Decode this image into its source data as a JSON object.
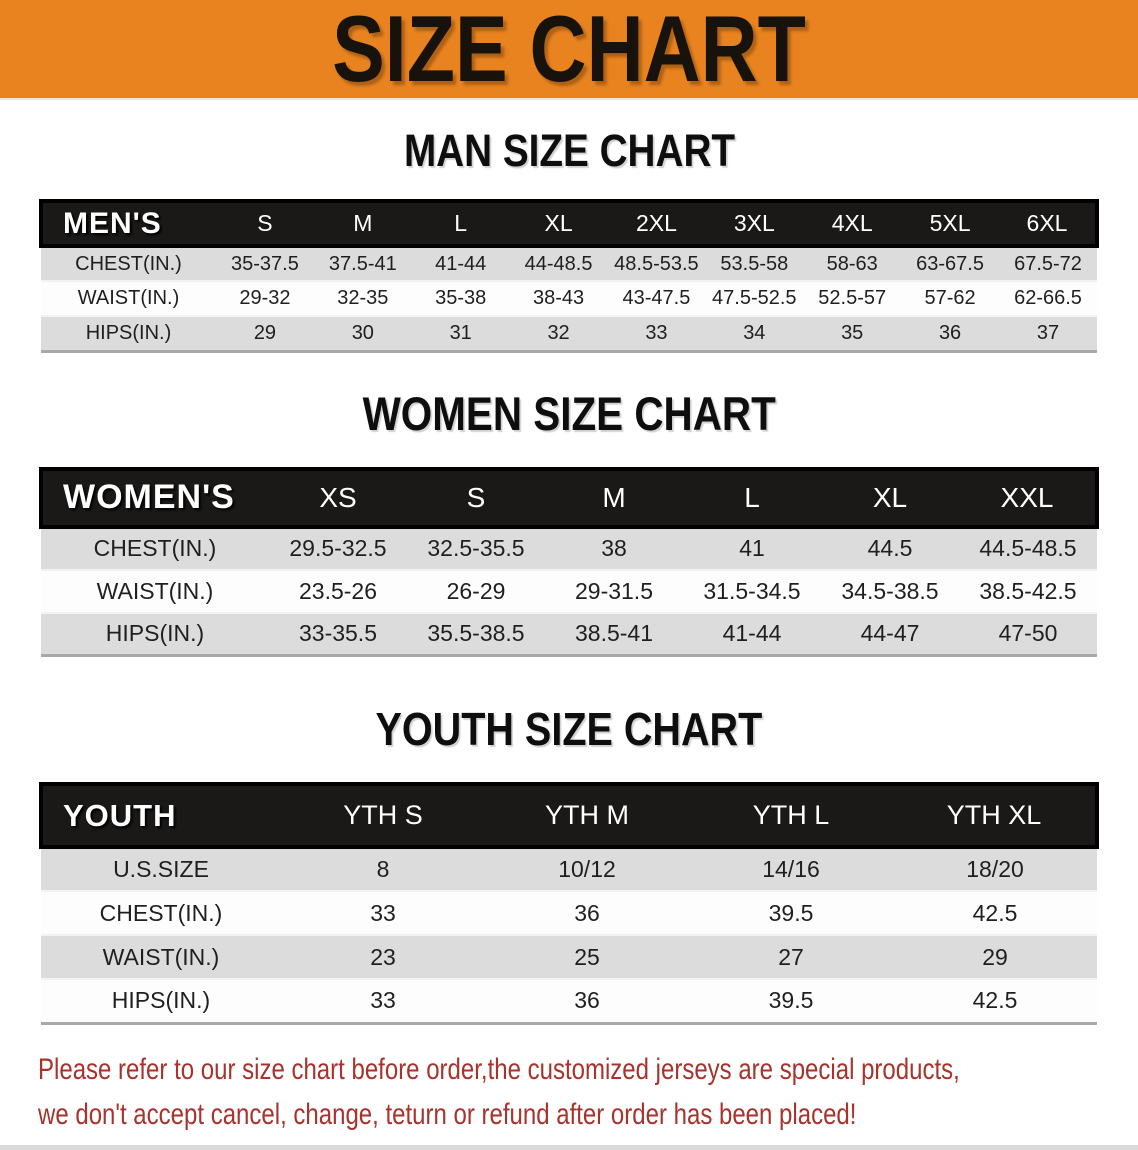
{
  "banner": {
    "title": "SIZE CHART",
    "bg_color": "#e8831f",
    "text_color": "#18120c"
  },
  "sections": [
    {
      "heading": "MAN SIZE CHART",
      "table": {
        "header_label": "MEN'S",
        "columns": [
          "S",
          "M",
          "L",
          "XL",
          "2XL",
          "3XL",
          "4XL",
          "5XL",
          "6XL"
        ],
        "rows": [
          {
            "label": "CHEST(IN.)",
            "values": [
              "35-37.5",
              "37.5-41",
              "41-44",
              "44-48.5",
              "48.5-53.5",
              "53.5-58",
              "58-63",
              "63-67.5",
              "67.5-72"
            ]
          },
          {
            "label": "WAIST(IN.)",
            "values": [
              "29-32",
              "32-35",
              "35-38",
              "38-43",
              "43-47.5",
              "47.5-52.5",
              "52.5-57",
              "57-62",
              "62-66.5"
            ]
          },
          {
            "label": "HIPS(IN.)",
            "values": [
              "29",
              "30",
              "31",
              "32",
              "33",
              "34",
              "35",
              "36",
              "37"
            ]
          }
        ]
      }
    },
    {
      "heading": "WOMEN SIZE CHART",
      "table": {
        "header_label": "WOMEN'S",
        "columns": [
          "XS",
          "S",
          "M",
          "L",
          "XL",
          "XXL"
        ],
        "rows": [
          {
            "label": "CHEST(IN.)",
            "values": [
              "29.5-32.5",
              "32.5-35.5",
              "38",
              "41",
              "44.5",
              "44.5-48.5"
            ]
          },
          {
            "label": "WAIST(IN.)",
            "values": [
              "23.5-26",
              "26-29",
              "29-31.5",
              "31.5-34.5",
              "34.5-38.5",
              "38.5-42.5"
            ]
          },
          {
            "label": "HIPS(IN.)",
            "values": [
              "33-35.5",
              "35.5-38.5",
              "38.5-41",
              "41-44",
              "44-47",
              "47-50"
            ]
          }
        ]
      }
    },
    {
      "heading": "YOUTH SIZE CHART",
      "table": {
        "header_label": "YOUTH",
        "columns": [
          "YTH S",
          "YTH M",
          "YTH L",
          "YTH XL"
        ],
        "rows": [
          {
            "label": "U.S.SIZE",
            "values": [
              "8",
              "10/12",
              "14/16",
              "18/20"
            ]
          },
          {
            "label": "CHEST(IN.)",
            "values": [
              "33",
              "36",
              "39.5",
              "42.5"
            ]
          },
          {
            "label": "WAIST(IN.)",
            "values": [
              "23",
              "25",
              "27",
              "29"
            ]
          },
          {
            "label": "HIPS(IN.)",
            "values": [
              "33",
              "36",
              "39.5",
              "42.5"
            ]
          }
        ]
      }
    }
  ],
  "disclaimer": {
    "line1": "Please refer to our size chart before order,the customized jerseys are special products,",
    "line2": "we don't accept cancel, change, teturn or refund after order has been placed!",
    "color": "#a8322c"
  },
  "colors": {
    "table_header_bg": "#1b1917",
    "row_stripe_gray": "#dcdcdc",
    "row_stripe_white": "#fdfdfd"
  }
}
